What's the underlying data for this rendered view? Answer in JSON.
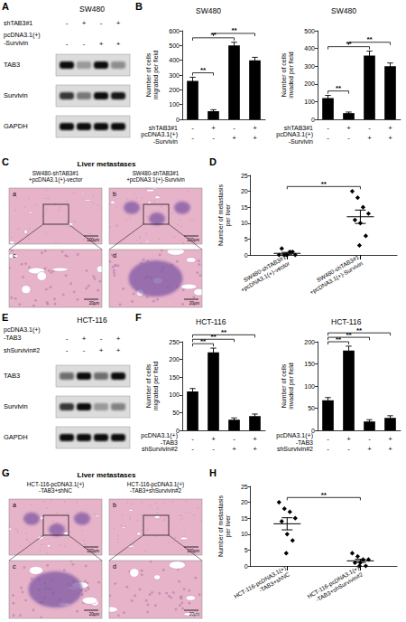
{
  "figure": {
    "panel_letters": [
      "A",
      "B",
      "C",
      "D",
      "E",
      "F",
      "G",
      "H"
    ],
    "blots": [
      {
        "title": "SW480",
        "rows": [
          {
            "label": "shTAB3#1",
            "signs": [
              "-",
              "+",
              "-",
              "+"
            ]
          },
          {
            "label": "pcDNA3.1(+)\n-Survivin",
            "signs": [
              "-",
              "-",
              "+",
              "+"
            ]
          }
        ],
        "bands": [
          {
            "label": "TAB3",
            "levels": [
              1,
              0.35,
              1,
              0.4
            ]
          },
          {
            "label": "Survivin",
            "levels": [
              0.8,
              0.5,
              1,
              0.95
            ]
          },
          {
            "label": "GAPDH",
            "levels": [
              1,
              1,
              1,
              1
            ]
          }
        ]
      },
      {
        "title": "HCT-116",
        "rows": [
          {
            "label": "pcDNA3.1(+)\n-TAB3",
            "signs": [
              "-",
              "+",
              "-",
              "+"
            ]
          },
          {
            "label": "shSurvivin#2",
            "signs": [
              "-",
              "-",
              "+",
              "+"
            ]
          }
        ],
        "bands": [
          {
            "label": "TAB3",
            "levels": [
              0.55,
              1,
              0.55,
              1
            ]
          },
          {
            "label": "Survivin",
            "levels": [
              0.8,
              1,
              0.35,
              0.45
            ]
          },
          {
            "label": "GAPDH",
            "levels": [
              1,
              1,
              1,
              1
            ]
          }
        ]
      }
    ],
    "histology": [
      {
        "title": "Liver metastases",
        "columns": [
          "SW480-shTAB3#1\n+pcDNA3.1(+)-vector",
          "SW480-shTAB3#1\n+pcDNA3.1(+)-Survivin"
        ],
        "panels": [
          {
            "letter": "a",
            "scale": "100μm"
          },
          {
            "letter": "b",
            "scale": "100μm"
          },
          {
            "letter": "c",
            "scale": "20μm"
          },
          {
            "letter": "d",
            "scale": "20μm"
          }
        ],
        "metastasis": [
          false,
          true
        ]
      },
      {
        "title": "Liver metastases",
        "columns": [
          "HCT-116-pcDNA3.1(+)\n-TAB3+shNC",
          "HCT-116-pcDNA3.1(+)\n-TAB3+shSurvivin#2"
        ],
        "panels": [
          {
            "letter": "a",
            "scale": "100μm"
          },
          {
            "letter": "b",
            "scale": "100μm"
          },
          {
            "letter": "c",
            "scale": "20μm"
          },
          {
            "letter": "d",
            "scale": "20μm"
          }
        ],
        "metastasis": [
          true,
          false
        ]
      }
    ]
  },
  "chart_data": [
    {
      "type": "bar",
      "title": "SW480",
      "y_label": "Number of cells\nmigrated per field",
      "categories": [
        "-\n-",
        "+\n-",
        "-\n+",
        "+\n+"
      ],
      "row_labels": [
        "shTAB3#1",
        "pcDNA3.1(+)\n-Survivin"
      ],
      "values": [
        260,
        55,
        500,
        400
      ],
      "errors": [
        25,
        10,
        22,
        20
      ],
      "color": "#000000",
      "ylim": [
        0,
        600
      ],
      "yticks": [
        0,
        100,
        200,
        300,
        400,
        500,
        600
      ],
      "grid": false,
      "brackets": [
        {
          "between": [
            0,
            1
          ],
          "label": "**"
        },
        {
          "between": [
            0,
            2
          ],
          "label": "**"
        },
        {
          "between": [
            1,
            3
          ],
          "label": "**"
        }
      ]
    },
    {
      "type": "bar",
      "title": "SW480",
      "y_label": "Number of cells\ninvaded per field",
      "categories": [
        "-\n-",
        "+\n-",
        "-\n+",
        "+\n+"
      ],
      "row_labels": [
        "shTAB3#1",
        "pcDNA3.1(+)\n-Survivin"
      ],
      "values": [
        120,
        35,
        360,
        300
      ],
      "errors": [
        15,
        6,
        25,
        18
      ],
      "color": "#000000",
      "ylim": [
        0,
        500
      ],
      "yticks": [
        0,
        100,
        200,
        300,
        400,
        500
      ],
      "grid": false,
      "brackets": [
        {
          "between": [
            0,
            1
          ],
          "label": "**"
        },
        {
          "between": [
            0,
            2
          ],
          "label": "**"
        },
        {
          "between": [
            1,
            3
          ],
          "label": "**"
        }
      ]
    },
    {
      "type": "scatter",
      "y_label": "Number of metastasis\nper liver",
      "categories": [
        "SW480-shTAB3#1\n+pcDNA3.1(+)-vector",
        "SW480-shTAB3#1\n+pcDNA3.1(+)-Survivin"
      ],
      "points": [
        [
          0,
          0,
          1,
          0,
          2,
          0,
          1,
          0
        ],
        [
          20,
          18,
          15,
          13,
          11,
          10,
          6,
          3
        ]
      ],
      "means": [
        0.5,
        12
      ],
      "errors": [
        0.3,
        2.1
      ],
      "color": "#000000",
      "marker": "diamond",
      "ylim": [
        0,
        25
      ],
      "yticks": [
        0,
        5,
        10,
        15,
        20,
        25
      ],
      "grid": false,
      "brackets": [
        {
          "between": [
            0,
            1
          ],
          "label": "**"
        }
      ]
    },
    {
      "type": "bar",
      "title": "HCT-116",
      "y_label": "Number of cells\nmigrated per field",
      "categories": [
        "-\n-",
        "+\n-",
        "-\n+",
        "+\n+"
      ],
      "row_labels": [
        "pcDNA3.1(+)\n-TAB3",
        "shSurvivin#2"
      ],
      "values": [
        110,
        220,
        30,
        40
      ],
      "errors": [
        8,
        12,
        5,
        6
      ],
      "color": "#000000",
      "ylim": [
        0,
        250
      ],
      "yticks": [
        0,
        50,
        100,
        150,
        200,
        250
      ],
      "grid": false,
      "brackets": [
        {
          "between": [
            0,
            1
          ],
          "label": "**"
        },
        {
          "between": [
            0,
            2
          ],
          "label": "**"
        },
        {
          "between": [
            0,
            3
          ],
          "label": "**"
        }
      ]
    },
    {
      "type": "bar",
      "title": "HCT-116",
      "y_label": "Number of cells\ninvaded per field",
      "categories": [
        "-\n-",
        "+\n-",
        "-\n+",
        "+\n+"
      ],
      "row_labels": [
        "pcDNA3.1(+)\n-TAB3",
        "shSurvivin#2"
      ],
      "values": [
        68,
        180,
        20,
        28
      ],
      "errors": [
        6,
        10,
        4,
        5
      ],
      "color": "#000000",
      "ylim": [
        0,
        200
      ],
      "yticks": [
        0,
        50,
        100,
        150,
        200
      ],
      "grid": false,
      "brackets": [
        {
          "between": [
            0,
            1
          ],
          "label": "**"
        },
        {
          "between": [
            0,
            2
          ],
          "label": "**"
        },
        {
          "between": [
            0,
            3
          ],
          "label": "**"
        }
      ]
    },
    {
      "type": "scatter",
      "y_label": "Number of metastasis\nper liver",
      "categories": [
        "HCT-116-pcDNA3.1(+)\n-TAB3+shNC",
        "HCT-116-pcDNA3.1(+)\n-TAB3+shSurvivin#2"
      ],
      "points": [
        [
          20,
          18,
          17,
          15,
          14,
          10,
          8,
          4
        ],
        [
          4,
          3,
          2,
          2,
          1,
          1,
          0,
          0
        ]
      ],
      "means": [
        13.25,
        1.6
      ],
      "errors": [
        1.9,
        0.5
      ],
      "color": "#000000",
      "marker": "diamond",
      "ylim": [
        0,
        25
      ],
      "yticks": [
        0,
        5,
        10,
        15,
        20,
        25
      ],
      "grid": false,
      "brackets": [
        {
          "between": [
            0,
            1
          ],
          "label": "**"
        }
      ]
    }
  ]
}
